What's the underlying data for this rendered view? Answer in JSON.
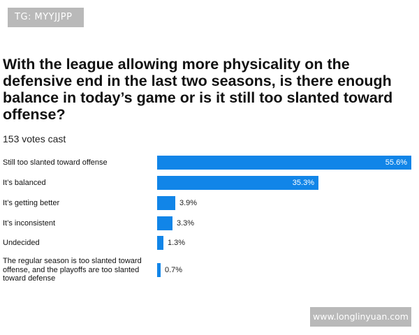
{
  "watermarks": {
    "top": "TG: MYYJJPP",
    "bottom": "www.longlinyuan.com"
  },
  "poll": {
    "question": "With the league allowing more physicality on the defensive end in the last two seasons, is there enough balance in today’s game or is it still too slanted toward offense?",
    "votes_cast": "153 votes cast"
  },
  "colors": {
    "bar": "#1185e8"
  },
  "chart_data": {
    "type": "bar",
    "orientation": "horizontal",
    "categories": [
      "Still too slanted toward offense",
      "It’s balanced",
      "It’s getting better",
      "It’s inconsistent",
      "Undecided",
      "The regular season is too slanted toward offense, and the playoffs are too slanted toward defense"
    ],
    "values": [
      55.6,
      35.3,
      3.9,
      3.3,
      1.3,
      0.7
    ],
    "value_labels": [
      "55.6%",
      "35.3%",
      "3.9%",
      "3.3%",
      "1.3%",
      "0.7%"
    ],
    "xlim": [
      0,
      55.6
    ],
    "grid": false
  }
}
